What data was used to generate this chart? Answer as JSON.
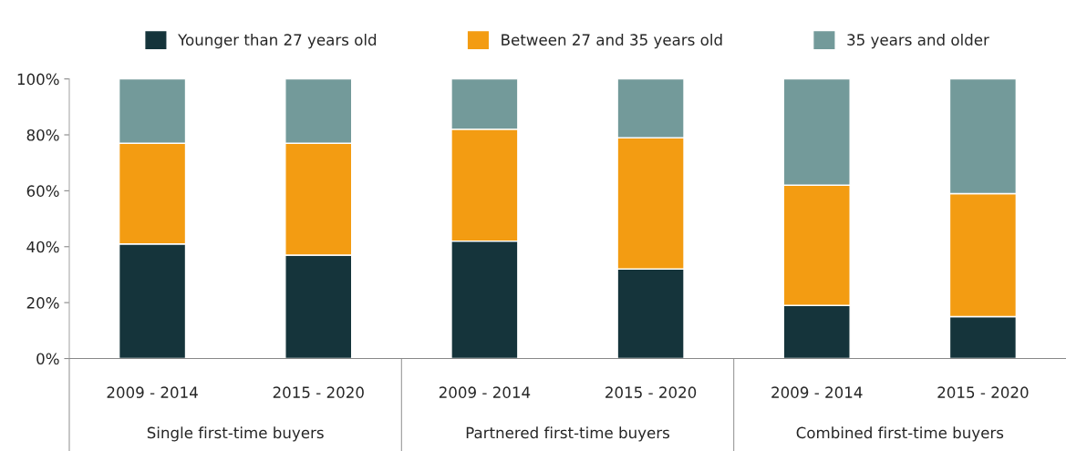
{
  "chart_data": {
    "type": "bar",
    "stacked": true,
    "categories": [
      "2009 - 2014",
      "2015 - 2020",
      "2009 - 2014",
      "2015 - 2020",
      "2009 - 2014",
      "2015 - 2020"
    ],
    "series": [
      {
        "name": "Younger than 27 years old",
        "color": "#15343b",
        "values": [
          41,
          37,
          42,
          32,
          19,
          15
        ]
      },
      {
        "name": "Between 27 and 35 years old",
        "color": "#f39c12",
        "values": [
          36,
          40,
          40,
          47,
          43,
          44
        ]
      },
      {
        "name": "35 years and older",
        "color": "#739a9a",
        "values": [
          23,
          23,
          18,
          21,
          38,
          41
        ]
      }
    ],
    "ylim": [
      0,
      100
    ],
    "yticks": [
      {
        "value": 0,
        "label": "0%"
      },
      {
        "value": 20,
        "label": "20%"
      },
      {
        "value": 40,
        "label": "40%"
      },
      {
        "value": 60,
        "label": "60%"
      },
      {
        "value": 80,
        "label": "80%"
      },
      {
        "value": 100,
        "label": "100%"
      }
    ],
    "annotations": [
      "Single first-time buyers",
      "Partnered first-time buyers",
      "Combined first-time buyers"
    ],
    "legend": "top",
    "grid": false
  }
}
